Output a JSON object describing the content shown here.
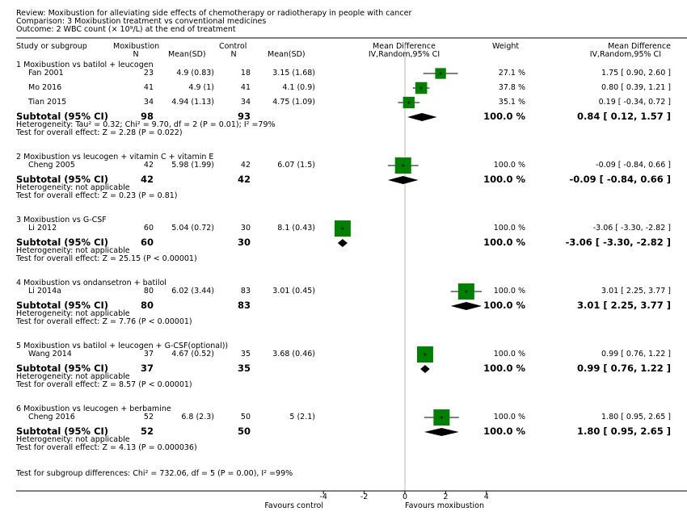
{
  "header": {
    "review": "Review:  Moxibustion for alleviating side effects of chemotherapy or radiotherapy in people with cancer",
    "comparison": "Comparison:  3 Moxibustion treatment vs conventional medicines",
    "outcome": "Outcome:  2 WBC count (× 10⁹/L) at the end of treatment"
  },
  "columns": {
    "study": "Study or subgroup",
    "moxibustion": "Moxibustion",
    "control": "Control",
    "n": "N",
    "mean_sd": "Mean(SD)",
    "md": "Mean Difference",
    "md_method": "IV,Random,95% CI",
    "weight": "Weight",
    "md2": "Mean Difference",
    "md2_method": "IV,Random,95% CI"
  },
  "chart_data": {
    "type": "forest",
    "xlim": [
      -4,
      4
    ],
    "ticks": [
      -4,
      -2,
      0,
      2,
      4
    ],
    "favours_left": "Favours control",
    "favours_right": "Favours moxibustion",
    "subgroups": [
      {
        "title": "1 Moxibustion vs batilol + leucogen",
        "studies": [
          {
            "name": "Fan 2001",
            "n1": "23",
            "msd1": "4.9 (0.83)",
            "n2": "18",
            "msd2": "3.15 (1.68)",
            "weight": "27.1 %",
            "ci_text": "1.75 [ 0.90, 2.60 ]",
            "md": 1.75,
            "lo": 0.9,
            "hi": 2.6,
            "w": 27.1
          },
          {
            "name": "Mo 2016",
            "n1": "41",
            "msd1": "4.9 (1)",
            "n2": "41",
            "msd2": "4.1 (0.9)",
            "weight": "37.8 %",
            "ci_text": "0.80 [ 0.39, 1.21 ]",
            "md": 0.8,
            "lo": 0.39,
            "hi": 1.21,
            "w": 37.8
          },
          {
            "name": "Tian 2015",
            "n1": "34",
            "msd1": "4.94 (1.13)",
            "n2": "34",
            "msd2": "4.75 (1.09)",
            "weight": "35.1 %",
            "ci_text": "0.19 [ -0.34, 0.72 ]",
            "md": 0.19,
            "lo": -0.34,
            "hi": 0.72,
            "w": 35.1
          }
        ],
        "subtotal": {
          "label": "Subtotal (95% CI)",
          "n1": "98",
          "n2": "93",
          "weight": "100.0 %",
          "ci_text": "0.84 [ 0.12, 1.57 ]",
          "md": 0.84,
          "lo": 0.12,
          "hi": 1.57
        },
        "heterogeneity": "Heterogeneity: Tau² = 0.32; Chi² = 9.70, df = 2 (P = 0.01); I² =79%",
        "overall": "Test for overall effect: Z = 2.28 (P = 0.022)"
      },
      {
        "title": "2 Moxibustion vs leucogen + vitamin C + vitamin E",
        "studies": [
          {
            "name": "Cheng 2005",
            "n1": "42",
            "msd1": "5.98 (1.99)",
            "n2": "42",
            "msd2": "6.07 (1.5)",
            "weight": "100.0 %",
            "ci_text": "-0.09 [ -0.84, 0.66 ]",
            "md": -0.09,
            "lo": -0.84,
            "hi": 0.66,
            "w": 100
          }
        ],
        "subtotal": {
          "label": "Subtotal (95% CI)",
          "n1": "42",
          "n2": "42",
          "weight": "100.0 %",
          "ci_text": "-0.09 [ -0.84, 0.66 ]",
          "md": -0.09,
          "lo": -0.84,
          "hi": 0.66
        },
        "heterogeneity": "Heterogeneity: not applicable",
        "overall": "Test for overall effect: Z = 0.23 (P = 0.81)"
      },
      {
        "title": "3 Moxibustion vs G-CSF",
        "studies": [
          {
            "name": "Li 2012",
            "n1": "60",
            "msd1": "5.04 (0.72)",
            "n2": "30",
            "msd2": "8.1 (0.43)",
            "weight": "100.0 %",
            "ci_text": "-3.06 [ -3.30, -2.82 ]",
            "md": -3.06,
            "lo": -3.3,
            "hi": -2.82,
            "w": 100
          }
        ],
        "subtotal": {
          "label": "Subtotal (95% CI)",
          "n1": "60",
          "n2": "30",
          "weight": "100.0 %",
          "ci_text": "-3.06 [ -3.30, -2.82 ]",
          "md": -3.06,
          "lo": -3.3,
          "hi": -2.82
        },
        "heterogeneity": "Heterogeneity: not applicable",
        "overall": "Test for overall effect: Z = 25.15 (P < 0.00001)"
      },
      {
        "title": "4 Moxibustion vs ondansetron + batilol",
        "studies": [
          {
            "name": "Li 2014a",
            "n1": "80",
            "msd1": "6.02 (3.44)",
            "n2": "83",
            "msd2": "3.01 (0.45)",
            "weight": "100.0 %",
            "ci_text": "3.01 [ 2.25, 3.77 ]",
            "md": 3.01,
            "lo": 2.25,
            "hi": 3.77,
            "w": 100
          }
        ],
        "subtotal": {
          "label": "Subtotal (95% CI)",
          "n1": "80",
          "n2": "83",
          "weight": "100.0 %",
          "ci_text": "3.01 [ 2.25, 3.77 ]",
          "md": 3.01,
          "lo": 2.25,
          "hi": 3.77
        },
        "heterogeneity": "Heterogeneity: not applicable",
        "overall": "Test for overall effect: Z = 7.76 (P < 0.00001)"
      },
      {
        "title": "5 Moxibustion vs batilol + leucogen + G-CSF(optional))",
        "studies": [
          {
            "name": "Wang 2014",
            "n1": "37",
            "msd1": "4.67 (0.52)",
            "n2": "35",
            "msd2": "3.68 (0.46)",
            "weight": "100.0 %",
            "ci_text": "0.99 [ 0.76, 1.22 ]",
            "md": 0.99,
            "lo": 0.76,
            "hi": 1.22,
            "w": 100
          }
        ],
        "subtotal": {
          "label": "Subtotal (95% CI)",
          "n1": "37",
          "n2": "35",
          "weight": "100.0 %",
          "ci_text": "0.99 [ 0.76, 1.22 ]",
          "md": 0.99,
          "lo": 0.76,
          "hi": 1.22
        },
        "heterogeneity": "Heterogeneity: not applicable",
        "overall": "Test for overall effect: Z = 8.57 (P < 0.00001)"
      },
      {
        "title": "6 Moxibustion vs leucogen + berbamine",
        "studies": [
          {
            "name": "Cheng 2016",
            "n1": "52",
            "msd1": "6.8 (2.3)",
            "n2": "50",
            "msd2": "5 (2.1)",
            "weight": "100.0 %",
            "ci_text": "1.80 [ 0.95, 2.65 ]",
            "md": 1.8,
            "lo": 0.95,
            "hi": 2.65,
            "w": 100
          }
        ],
        "subtotal": {
          "label": "Subtotal (95% CI)",
          "n1": "52",
          "n2": "50",
          "weight": "100.0 %",
          "ci_text": "1.80 [ 0.95, 2.65 ]",
          "md": 1.8,
          "lo": 0.95,
          "hi": 2.65
        },
        "heterogeneity": "Heterogeneity: not applicable",
        "overall": "Test for overall effect: Z = 4.13 (P = 0.000036)"
      }
    ],
    "subgroup_differences": "Test for subgroup differences: Chi² = 732.06, df = 5 (P = 0.00), I² =99%",
    "colors": {
      "square": "#008000",
      "diamond": "#000000",
      "axis": "#000000",
      "zero_line": "#bbbbbb"
    }
  }
}
